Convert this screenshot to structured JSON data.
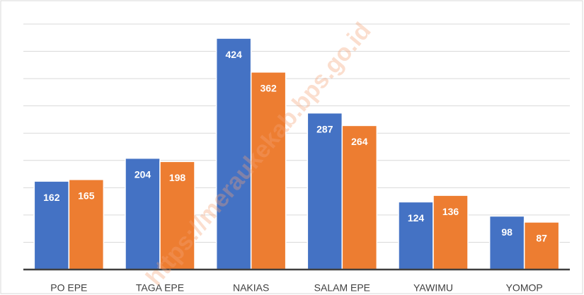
{
  "chart_data": {
    "type": "bar",
    "categories": [
      "PO EPE",
      "TAGA EPE",
      "NAKIAS",
      "SALAM EPE",
      "YAWIMU",
      "YOMOP"
    ],
    "series": [
      {
        "color": "#4472c4",
        "values": [
          162,
          204,
          424,
          287,
          124,
          98
        ]
      },
      {
        "color": "#ed7d31",
        "values": [
          165,
          198,
          362,
          264,
          136,
          87
        ]
      }
    ],
    "ylim": [
      0,
      450
    ],
    "yticks": [
      0,
      50,
      100,
      150,
      200,
      250,
      300,
      350,
      400,
      450
    ],
    "grid": true,
    "annotation": "https://meraukekab.bps.go.id"
  }
}
